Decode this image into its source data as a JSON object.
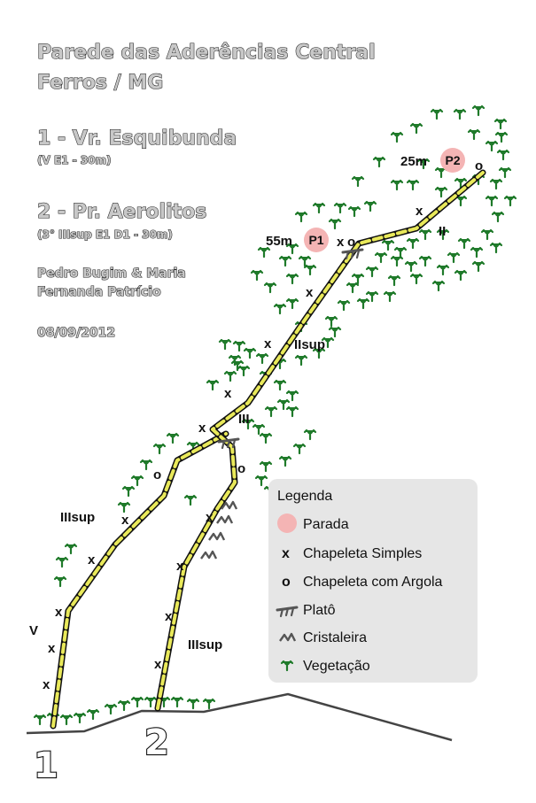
{
  "header": {
    "title_line1": "Parede das Aderências Central",
    "title_line2": "Ferros / MG",
    "route1_title": "1 - Vr. Esquibunda",
    "route1_grade": "(V E1 - 30m)",
    "route2_title": "2 - Pr. Aerolitos",
    "route2_grade": "(3° IIIsup E1 D1 - 30m)",
    "authors_line1": "Pedro Bugim & Maria",
    "authors_line2": "Fernanda Patrício",
    "date": "08/09/2012"
  },
  "topo": {
    "grades": [
      "V",
      "IIIsup",
      "IIIsup",
      "III",
      "IIsup",
      "II"
    ],
    "bolt_simple": "x",
    "bolt_ring": "o",
    "stops": [
      {
        "label": "P1",
        "distance": "55m"
      },
      {
        "label": "P2",
        "distance": "25m"
      }
    ],
    "start_numbers": [
      "1",
      "2"
    ]
  },
  "legend": {
    "title": "Legenda",
    "items": [
      {
        "icon": "stop-circle-icon",
        "label": "Parada"
      },
      {
        "icon": "bolt-simple-icon",
        "label": "Chapeleta Simples",
        "glyph": "x"
      },
      {
        "icon": "bolt-ring-icon",
        "label": "Chapeleta com Argola",
        "glyph": "o"
      },
      {
        "icon": "ledge-icon",
        "label": "Platô"
      },
      {
        "icon": "crystal-icon",
        "label": "Cristaleira"
      },
      {
        "icon": "vegetation-icon",
        "label": "Vegetação"
      }
    ]
  },
  "colors": {
    "stop_fill": "#f4b4b4",
    "route_yellow": "#e9e95a",
    "vegetation": "#1f7a2a",
    "legend_bg": "#e6e6e6"
  }
}
